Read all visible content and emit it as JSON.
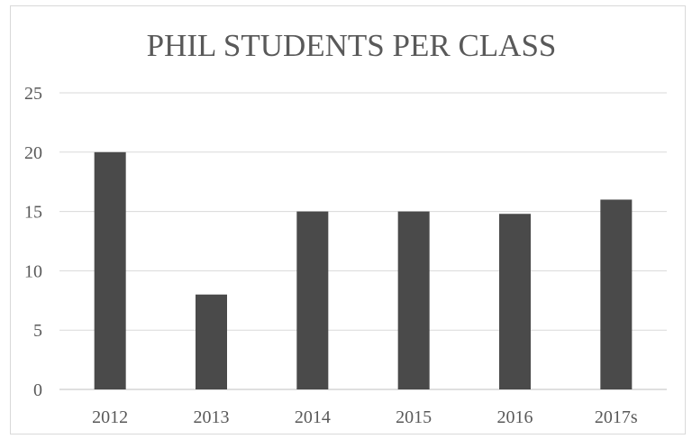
{
  "chart_data": {
    "type": "bar",
    "title": "PHIL STUDENTS PER CLASS",
    "categories": [
      "2012",
      "2013",
      "2014",
      "2015",
      "2016",
      "2017s"
    ],
    "values": [
      20,
      8,
      15,
      15,
      14.8,
      16
    ],
    "xlabel": "",
    "ylabel": "",
    "ylim": [
      0,
      25
    ],
    "yticks": [
      "0",
      "5",
      "10",
      "15",
      "20",
      "25"
    ],
    "grid": true,
    "legend": "none",
    "bar_color": "#4a4a4a",
    "grid_color": "#d9d9d9"
  }
}
